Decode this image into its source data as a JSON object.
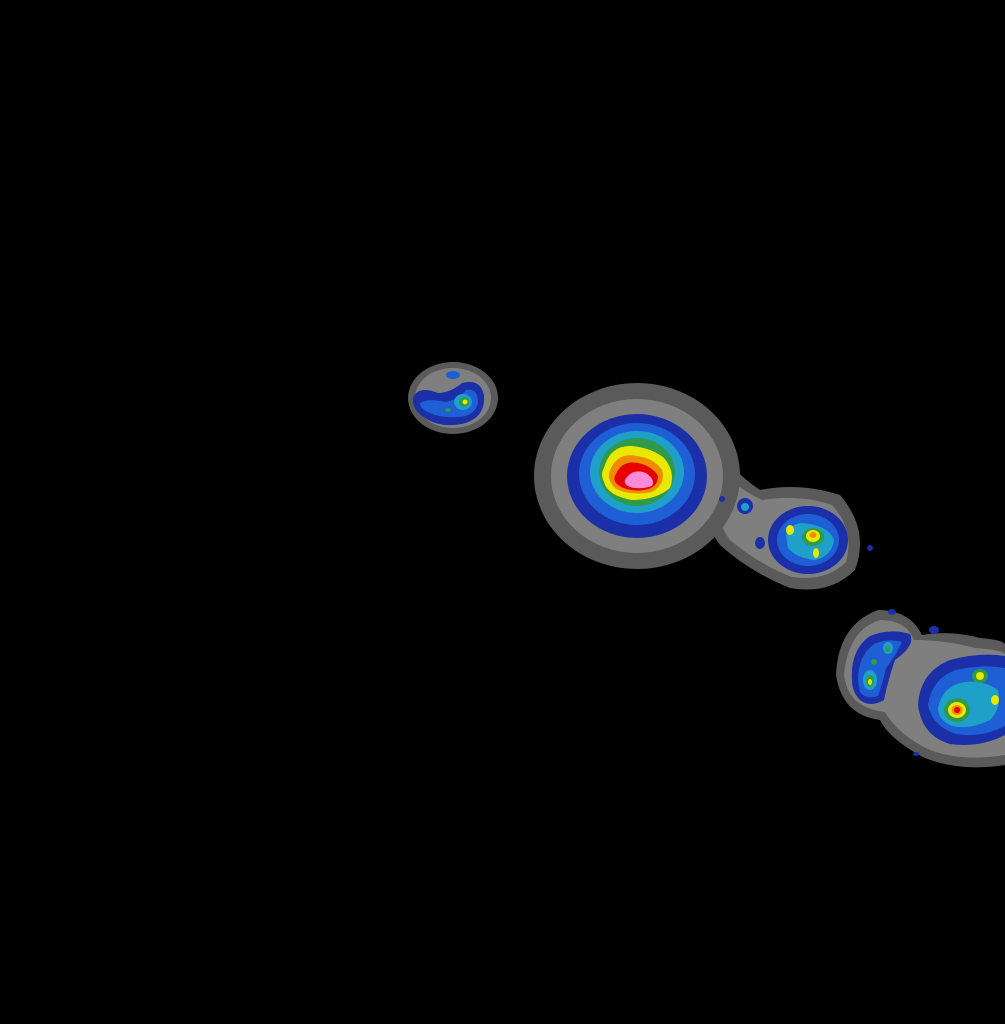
{
  "map": {
    "background_color": "#000000",
    "color_scale": [
      {
        "level": 1,
        "color": "#5a5a5a"
      },
      {
        "level": 2,
        "color": "#7f7f7f"
      },
      {
        "level": 3,
        "color": "#1a2fa8"
      },
      {
        "level": 4,
        "color": "#1f5fd6"
      },
      {
        "level": 5,
        "color": "#1fa0c8"
      },
      {
        "level": 6,
        "color": "#2e9a4a"
      },
      {
        "level": 7,
        "color": "#e8e800"
      },
      {
        "level": 8,
        "color": "#f08a00"
      },
      {
        "level": 9,
        "color": "#e60000"
      },
      {
        "level": 10,
        "color": "#ff8ad8"
      }
    ],
    "features": [
      {
        "id": "island-northwest-small",
        "max_level": 7
      },
      {
        "id": "island-central-large",
        "max_level": 10
      },
      {
        "id": "island-east-medium",
        "max_level": 8
      },
      {
        "id": "island-southeast-left",
        "max_level": 7
      },
      {
        "id": "island-southeast-right",
        "max_level": 9
      }
    ]
  }
}
